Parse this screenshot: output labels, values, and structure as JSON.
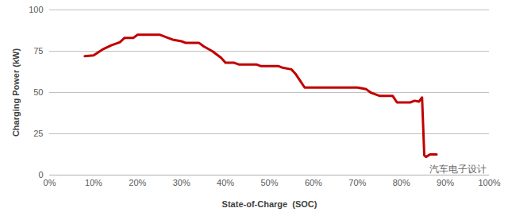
{
  "chart_data": {
    "type": "line",
    "xlabel": "State-of-Charge  (SOC)",
    "ylabel": "Charging Power (kW)",
    "annotation": "汽车电子设计",
    "x": [
      8,
      10,
      12,
      14,
      16,
      17,
      18,
      19,
      20,
      25,
      27,
      28,
      30,
      31,
      34,
      35,
      37,
      39,
      40,
      42,
      43,
      47,
      48,
      52,
      53,
      55,
      56,
      57,
      58,
      59,
      60,
      70,
      72,
      73,
      74,
      75,
      77,
      78,
      79,
      80,
      82,
      83,
      84,
      84.7,
      85.2,
      85.6,
      86.5,
      88
    ],
    "values": [
      72,
      72.5,
      76,
      78.5,
      80.5,
      83,
      83,
      83,
      85,
      85,
      83,
      82,
      81,
      80,
      80,
      78,
      75,
      71,
      68,
      68,
      67,
      67,
      66,
      66,
      65,
      64,
      61,
      57,
      53,
      53,
      53,
      53,
      52,
      50,
      49,
      48,
      48,
      48,
      44,
      44,
      44,
      45,
      44.5,
      47,
      12,
      11,
      12.5,
      12.5
    ],
    "color": "#c00000",
    "xlim": [
      0,
      100
    ],
    "xticks": [
      {
        "value": 0,
        "label": "0%"
      },
      {
        "value": 10,
        "label": "10%"
      },
      {
        "value": 20,
        "label": "20%"
      },
      {
        "value": 30,
        "label": "30%"
      },
      {
        "value": 40,
        "label": "40%"
      },
      {
        "value": 50,
        "label": "50%"
      },
      {
        "value": 60,
        "label": "60%"
      },
      {
        "value": 70,
        "label": "70%"
      },
      {
        "value": 80,
        "label": "80%"
      },
      {
        "value": 90,
        "label": "90%"
      },
      {
        "value": 100,
        "label": "100%"
      }
    ],
    "ylim": [
      0,
      100
    ],
    "yticks": [
      0,
      25,
      50,
      75,
      100
    ],
    "grid": true
  }
}
